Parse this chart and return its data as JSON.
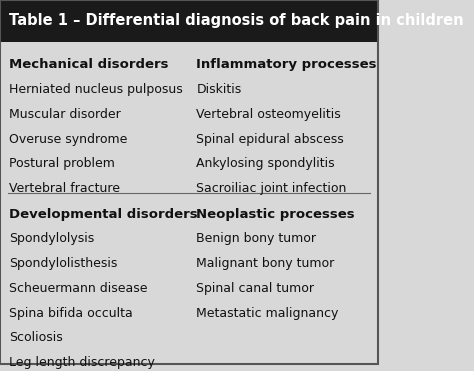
{
  "title": "Table 1 – Differential diagnosis of back pain in children",
  "title_bg": "#1a1a1a",
  "title_color": "#ffffff",
  "table_bg": "#d8d8d8",
  "border_color": "#555555",
  "col1_header1": "Mechanical disorders",
  "col1_items1": [
    "Herniated nucleus pulposus",
    "Muscular disorder",
    "Overuse syndrome",
    "Postural problem",
    "Vertebral fracture"
  ],
  "col1_header2": "Developmental disorders",
  "col1_items2": [
    "Spondylolysis",
    "Spondylolisthesis",
    "Scheuermann disease",
    "Spina bifida occulta",
    "Scoliosis",
    "Leg length discrepancy"
  ],
  "col2_header1": "Inflammatory processes",
  "col2_items1": [
    "Diskitis",
    "Vertebral osteomyelitis",
    "Spinal epidural abscess",
    "Ankylosing spondylitis",
    "Sacroiliac joint infection"
  ],
  "col2_header2": "Neoplastic processes",
  "col2_items2": [
    "Benign bony tumor",
    "Malignant bony tumor",
    "Spinal canal tumor",
    "Metastatic malignancy"
  ],
  "divider_color": "#666666",
  "header_fontsize": 9.5,
  "item_fontsize": 9.0,
  "title_fontsize": 10.5
}
